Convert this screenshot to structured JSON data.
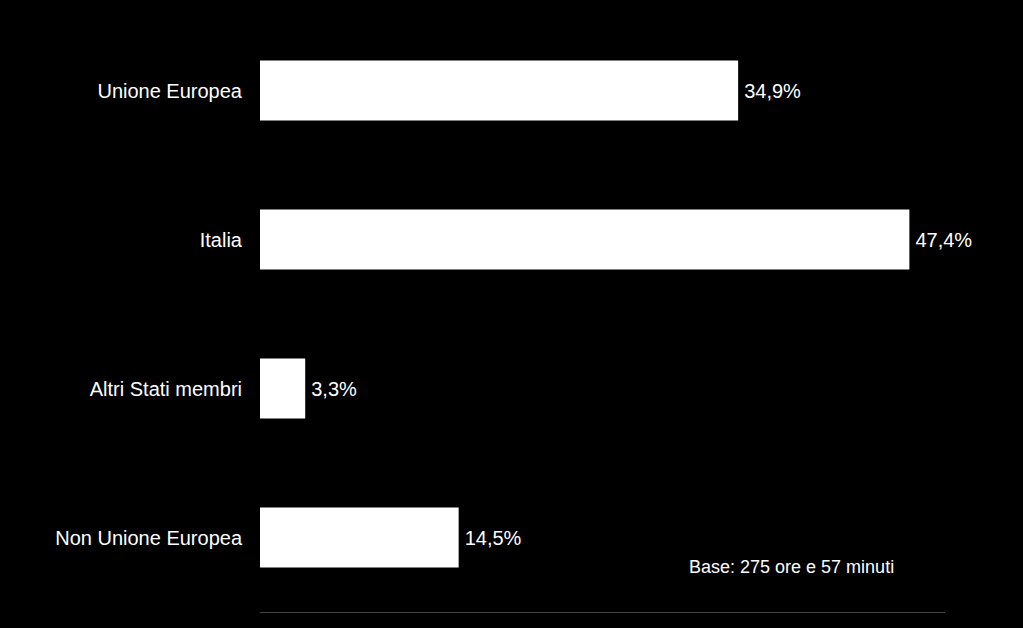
{
  "chart_data": {
    "type": "bar",
    "orientation": "horizontal",
    "categories": [
      "Unione Europea",
      "Italia",
      "Altri Stati membri",
      "Non Unione Europea"
    ],
    "values": [
      34.9,
      47.4,
      3.3,
      14.5
    ],
    "value_labels": [
      "34,9%",
      "47,4%",
      "3,3%",
      "14,5%"
    ],
    "color": "#ffffff",
    "xlim": [
      0,
      50
    ],
    "data_labels": true,
    "tick_labels": "y",
    "grid": false,
    "annotation": "Base: 275 ore e 57 minuti"
  }
}
